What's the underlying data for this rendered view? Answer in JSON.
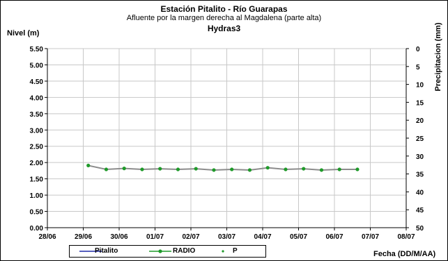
{
  "chart_data": {
    "type": "line",
    "title": "Estación Pitalito  - Río Guarapas",
    "subtitle": "Afluente por la margen derecha al Magdalena (parte alta)",
    "subtitle2": "Hydras3",
    "ylabel": "Nivel (m)",
    "ylabel_right": "Precipitacion (mm)",
    "xlabel": "Fecha (DD/M/AA)",
    "x_ticks": [
      "28/06",
      "29/06",
      "30/06",
      "01/07",
      "02/07",
      "03/07",
      "04/07",
      "05/07",
      "06/07",
      "07/07",
      "08/07"
    ],
    "xlim": [
      0,
      10
    ],
    "ylim": [
      0,
      5.5
    ],
    "y_ticks": [
      "0.00",
      "0.50",
      "1.00",
      "1.50",
      "2.00",
      "2.50",
      "3.00",
      "3.50",
      "4.00",
      "4.50",
      "5.00",
      "5.50"
    ],
    "ylim_right": [
      0,
      50
    ],
    "y_ticks_right": [
      "0",
      "5",
      "10",
      "15",
      "20",
      "25",
      "30",
      "35",
      "40",
      "45",
      "50"
    ],
    "y_right_inverted": true,
    "grid": true,
    "legend_placement": "bottom",
    "series": [
      {
        "name": "Pitalito",
        "color": "#1f2aa8",
        "marker": "none",
        "x": [],
        "y": []
      },
      {
        "name": "RADIO",
        "color": "#8c8c8c",
        "marker_color": "#1f9a2a",
        "marker": "circle",
        "x": [
          1.14,
          1.64,
          2.14,
          2.64,
          3.14,
          3.64,
          4.14,
          4.64,
          5.14,
          5.64,
          6.14,
          6.64,
          7.14,
          7.64,
          8.14,
          8.64
        ],
        "y": [
          1.91,
          1.79,
          1.82,
          1.79,
          1.81,
          1.79,
          1.81,
          1.77,
          1.79,
          1.77,
          1.84,
          1.79,
          1.81,
          1.77,
          1.79,
          1.79
        ]
      },
      {
        "name": "P",
        "color": "#1f9a2a",
        "marker": "dot",
        "x": [],
        "y": []
      }
    ]
  }
}
